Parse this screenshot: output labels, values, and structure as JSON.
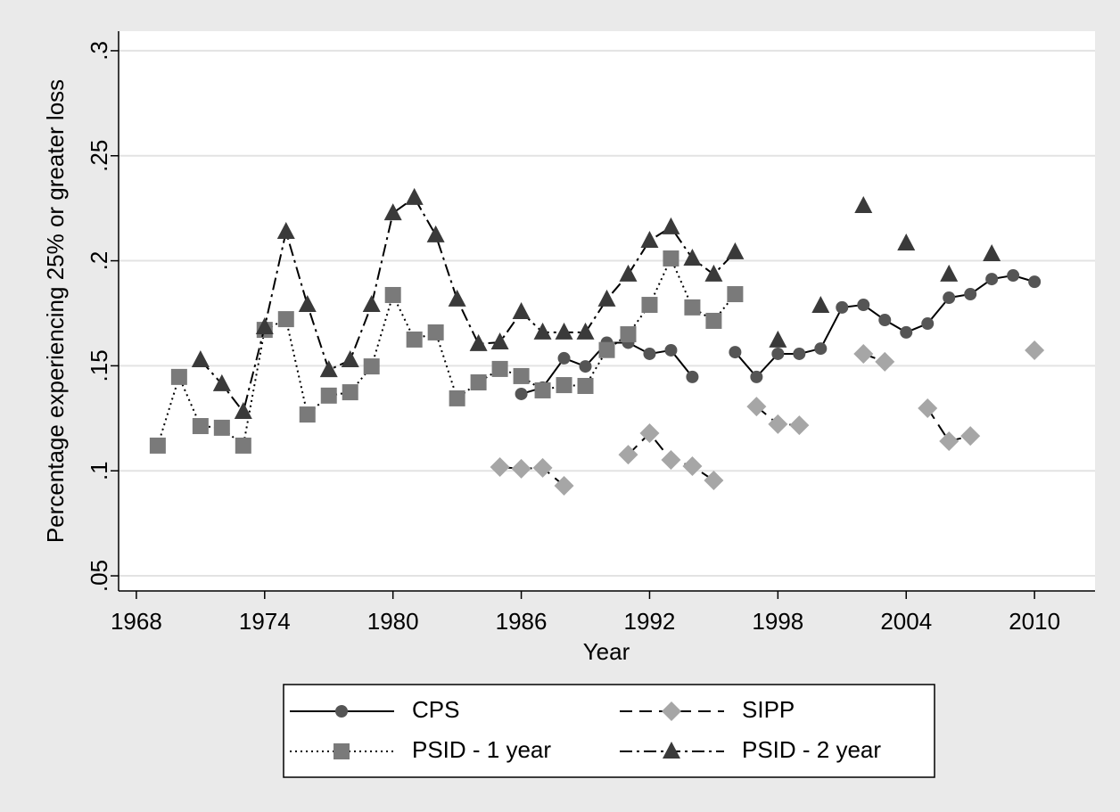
{
  "chart_data": {
    "type": "line",
    "x_label": "Year",
    "y_label": "Percentage experiencing 25% or greater loss",
    "x": [
      1969,
      1970,
      1971,
      1972,
      1973,
      1974,
      1975,
      1976,
      1977,
      1978,
      1979,
      1980,
      1981,
      1982,
      1983,
      1984,
      1985,
      1986,
      1987,
      1988,
      1989,
      1990,
      1991,
      1992,
      1993,
      1994,
      1995,
      1996,
      1997,
      1998,
      1999,
      2000,
      2001,
      2002,
      2003,
      2004,
      2005,
      2006,
      2007,
      2008,
      2009,
      2010
    ],
    "xlim": [
      1967.17,
      2012.83
    ],
    "xticks": [
      1968,
      1974,
      1980,
      1986,
      1992,
      1998,
      2004,
      2010
    ],
    "ylim": [
      0.0428,
      0.3093
    ],
    "yticks": [
      {
        "value": 0.05,
        "label": ".05"
      },
      {
        "value": 0.1,
        "label": ".1"
      },
      {
        "value": 0.15,
        "label": ".15"
      },
      {
        "value": 0.2,
        "label": ".2"
      },
      {
        "value": 0.25,
        "label": ".25"
      },
      {
        "value": 0.3,
        "label": ".3"
      }
    ],
    "grid": true,
    "legend": "bottom",
    "series": [
      {
        "name": "CPS",
        "color": "#555555",
        "marker": "circle",
        "line_style": "solid",
        "values": [
          null,
          null,
          null,
          null,
          null,
          null,
          null,
          null,
          null,
          null,
          null,
          null,
          null,
          null,
          null,
          null,
          null,
          0.1366,
          0.1396,
          0.1536,
          0.1497,
          0.161,
          0.161,
          0.1557,
          0.1574,
          0.1447,
          null,
          0.1565,
          0.1447,
          0.1557,
          0.1557,
          0.1582,
          0.1778,
          0.179,
          0.1718,
          0.1659,
          0.1701,
          0.1824,
          0.1841,
          0.1913,
          0.193,
          0.19
        ]
      },
      {
        "name": "SIPP",
        "color": "#a6a6a6",
        "marker": "diamond",
        "line_style": "dashed",
        "values": [
          null,
          null,
          null,
          null,
          null,
          null,
          null,
          null,
          null,
          null,
          null,
          null,
          null,
          null,
          null,
          null,
          0.1018,
          0.101,
          0.1014,
          0.0929,
          null,
          null,
          0.1077,
          0.1179,
          0.1052,
          0.1022,
          0.0954,
          null,
          0.1306,
          0.1222,
          0.1217,
          null,
          null,
          0.1557,
          0.1519,
          null,
          0.1298,
          0.1141,
          0.1166,
          null,
          null,
          0.1574
        ]
      },
      {
        "name": "PSID - 1 year",
        "color": "#7a7a7a",
        "marker": "square",
        "line_style": "dotted",
        "values": [
          0.112,
          0.1447,
          0.1213,
          0.1205,
          0.112,
          0.1671,
          0.1722,
          0.1268,
          0.1358,
          0.1374,
          0.1497,
          0.1837,
          0.1625,
          0.1659,
          0.1345,
          0.1421,
          0.1485,
          0.1451,
          0.1383,
          0.1408,
          0.1404,
          0.1575,
          0.165,
          0.179,
          0.2011,
          0.1778,
          0.1714,
          0.1841,
          null,
          null,
          null,
          null,
          null,
          null,
          null,
          null,
          null,
          null,
          null,
          null,
          null,
          null
        ]
      },
      {
        "name": "PSID - 2 year",
        "color": "#3a3a3a",
        "marker": "triangle",
        "line_style": "dashdot",
        "values": [
          null,
          null,
          0.1527,
          0.1413,
          0.1281,
          0.1684,
          0.2138,
          0.179,
          0.148,
          0.1527,
          0.179,
          0.2227,
          0.23,
          0.2122,
          0.1816,
          0.1604,
          0.1612,
          0.1756,
          0.1659,
          0.1659,
          0.1659,
          0.1816,
          0.1935,
          0.2096,
          0.216,
          0.2011,
          0.1935,
          0.2041,
          null,
          0.1621,
          null,
          0.1786,
          null,
          0.2261,
          null,
          0.2083,
          null,
          0.1935,
          null,
          0.2032,
          null,
          null
        ]
      }
    ]
  }
}
